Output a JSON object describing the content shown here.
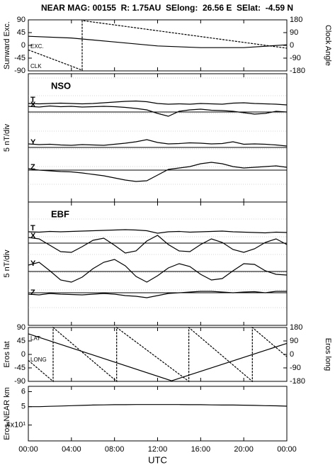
{
  "chart_data": [
    {
      "type": "line",
      "title": "NEAR MAG: 00155  R: 1.75AU  SElong:  26.56 E  SElat:  -4.59 N",
      "ylabel": "Sunward Exc.",
      "y2label": "Clock Angle",
      "xlim": [
        0,
        24
      ],
      "ylim": [
        -90,
        90
      ],
      "yticks": [
        -90,
        -45,
        0,
        45,
        90
      ],
      "y2lim": [
        -180,
        180
      ],
      "y2ticks": [
        -180,
        -90,
        0,
        90,
        180
      ],
      "series": [
        {
          "name": "EXC.",
          "color": "#000000",
          "x": [
            0,
            4,
            8,
            12,
            16,
            20,
            24
          ],
          "values": [
            32,
            26,
            12,
            -2,
            -8,
            -8,
            2
          ]
        },
        {
          "name": "CLK",
          "color": "#000000",
          "axis": "y2",
          "x": [
            0,
            5,
            5,
            24
          ],
          "values": [
            -32,
            -175,
            175,
            -20
          ]
        }
      ]
    },
    {
      "type": "line",
      "title": "NSO",
      "ylabel": "5 nT/div",
      "xlim": [
        0,
        24
      ],
      "x": [
        0,
        1,
        2,
        3,
        4,
        5,
        6,
        7,
        8,
        9,
        10,
        11,
        12,
        13,
        14,
        15,
        16,
        17,
        18,
        19,
        20,
        21,
        22,
        23,
        24
      ],
      "series": [
        {
          "name": "T",
          "color": "#000000",
          "values": [
            2.4,
            2.3,
            2.4,
            2.5,
            2.4,
            2.3,
            2.4,
            2.6,
            2.8,
            3.0,
            3.1,
            2.9,
            2.4,
            2.2,
            2.3,
            2.2,
            2.4,
            2.3,
            2.2,
            2.5,
            2.6,
            2.4,
            2.3,
            2.2,
            2.0
          ]
        },
        {
          "name": "X",
          "color": "#000000",
          "values": [
            1.6,
            1.4,
            1.7,
            1.5,
            1.6,
            1.4,
            1.5,
            1.6,
            1.5,
            1.3,
            1.0,
            0.6,
            -0.4,
            -1.2,
            0.2,
            0.6,
            0.8,
            0.5,
            0.4,
            0.2,
            -0.2,
            -0.6,
            -0.4,
            0.2,
            0.0
          ]
        },
        {
          "name": "Y",
          "color": "#000000",
          "values": [
            1.0,
            0.8,
            0.9,
            0.7,
            0.6,
            0.8,
            0.7,
            0.6,
            0.9,
            1.2,
            1.6,
            2.2,
            1.4,
            1.0,
            1.1,
            1.3,
            1.2,
            1.0,
            1.1,
            1.6,
            0.9,
            1.0,
            0.9,
            0.7,
            0.4
          ]
        },
        {
          "name": "Z",
          "color": "#000000",
          "values": [
            0.4,
            0.0,
            -0.2,
            -0.4,
            -0.5,
            -0.8,
            -1.2,
            -1.6,
            -2.2,
            -2.8,
            -3.2,
            -3.0,
            -1.4,
            0.2,
            0.6,
            1.0,
            1.8,
            2.2,
            1.8,
            1.0,
            0.6,
            0.8,
            1.0,
            1.2,
            0.8
          ]
        }
      ]
    },
    {
      "type": "line",
      "title": "EBF",
      "ylabel": "5 nT/div",
      "xlim": [
        0,
        24
      ],
      "x": [
        0,
        1,
        2,
        3,
        4,
        5,
        6,
        7,
        8,
        9,
        10,
        11,
        12,
        13,
        14,
        15,
        16,
        17,
        18,
        19,
        20,
        21,
        22,
        23,
        24
      ],
      "series": [
        {
          "name": "T",
          "color": "#000000",
          "values": [
            3.2,
            3.1,
            3.3,
            3.2,
            3.3,
            3.4,
            3.5,
            3.6,
            3.7,
            3.8,
            3.7,
            3.5,
            2.8,
            3.2,
            3.3,
            3.1,
            3.2,
            3.3,
            3.4,
            3.2,
            3.1,
            3.0,
            2.9,
            3.1,
            3.0
          ]
        },
        {
          "name": "X",
          "color": "#000000",
          "values": [
            1.6,
            1.2,
            -0.6,
            -2.4,
            -2.6,
            -1.0,
            0.8,
            1.4,
            -0.6,
            -2.8,
            -2.2,
            0.6,
            2.2,
            -0.4,
            -2.2,
            -2.4,
            -0.4,
            1.2,
            0.2,
            -1.8,
            -2.6,
            -1.6,
            0.2,
            1.2,
            -0.4
          ]
        },
        {
          "name": "Y",
          "color": "#000000",
          "values": [
            1.8,
            2.6,
            0.2,
            -2.4,
            -3.0,
            -1.6,
            0.8,
            2.6,
            3.4,
            1.6,
            -1.4,
            -3.0,
            -1.2,
            1.0,
            2.2,
            1.4,
            -0.8,
            -2.4,
            -2.0,
            0.2,
            2.2,
            2.0,
            0.2,
            -0.8,
            -1.0
          ]
        },
        {
          "name": "Z",
          "color": "#000000",
          "values": [
            -0.4,
            -0.6,
            -0.2,
            -0.4,
            -0.5,
            -0.6,
            -0.4,
            -0.2,
            -0.4,
            -0.8,
            -1.0,
            -1.4,
            -0.8,
            -0.2,
            0.0,
            0.2,
            0.4,
            0.4,
            0.2,
            0.0,
            0.2,
            0.3,
            0.0,
            0.4,
            0.4
          ]
        }
      ]
    },
    {
      "type": "line",
      "ylabel": "Eros lat",
      "y2label": "Eros long",
      "xlim": [
        0,
        24
      ],
      "ylim": [
        -90,
        90
      ],
      "yticks": [
        -90,
        -45,
        0,
        45,
        90
      ],
      "y2lim": [
        -180,
        180
      ],
      "y2ticks": [
        -180,
        -90,
        0,
        90,
        180
      ],
      "series": [
        {
          "name": "LAT",
          "color": "#000000",
          "x": [
            0,
            13.3,
            24
          ],
          "values": [
            69,
            -88,
            37
          ]
        },
        {
          "name": "LONG",
          "color": "#000000",
          "axis": "y2",
          "x": [
            0,
            2.3,
            2.3,
            8.2,
            8.2,
            14.9,
            14.9,
            20.8,
            20.8,
            24
          ],
          "values": [
            -40,
            -180,
            180,
            -180,
            180,
            -180,
            180,
            -180,
            180,
            -15
          ]
        }
      ]
    },
    {
      "type": "line",
      "ylabel": "Eros-NEAR km",
      "xlabel": "UTC",
      "log_scale": true,
      "xlim": [
        0,
        24
      ],
      "ylim": [
        33,
        64
      ],
      "yticks": [
        {
          "value": 40,
          "label": "4x10¹"
        },
        {
          "value": 50,
          "label": "5"
        },
        {
          "value": 60,
          "label": "6"
        }
      ],
      "xticks": [
        {
          "value": 0,
          "label": "00:00"
        },
        {
          "value": 4,
          "label": "04:00"
        },
        {
          "value": 8,
          "label": "08:00"
        },
        {
          "value": 12,
          "label": "12:00"
        },
        {
          "value": 16,
          "label": "16:00"
        },
        {
          "value": 20,
          "label": "20:00"
        },
        {
          "value": 24,
          "label": "00:00"
        }
      ],
      "x": [
        0,
        1,
        2,
        3,
        4,
        5,
        6,
        7,
        8,
        9,
        10,
        11,
        12,
        13,
        14,
        15,
        16,
        17,
        18,
        19,
        20,
        21,
        22,
        23,
        24
      ],
      "series": [
        {
          "name": null,
          "color": "#000000",
          "values": [
            50,
            50,
            50.2,
            50.4,
            50.6,
            50.8,
            51,
            51.1,
            51.2,
            51.2,
            51.3,
            51.3,
            51.3,
            51.3,
            51.3,
            51.2,
            51.2,
            51.1,
            51,
            51,
            50.9,
            50.8,
            50.6,
            50.5,
            50.3
          ]
        }
      ]
    }
  ]
}
